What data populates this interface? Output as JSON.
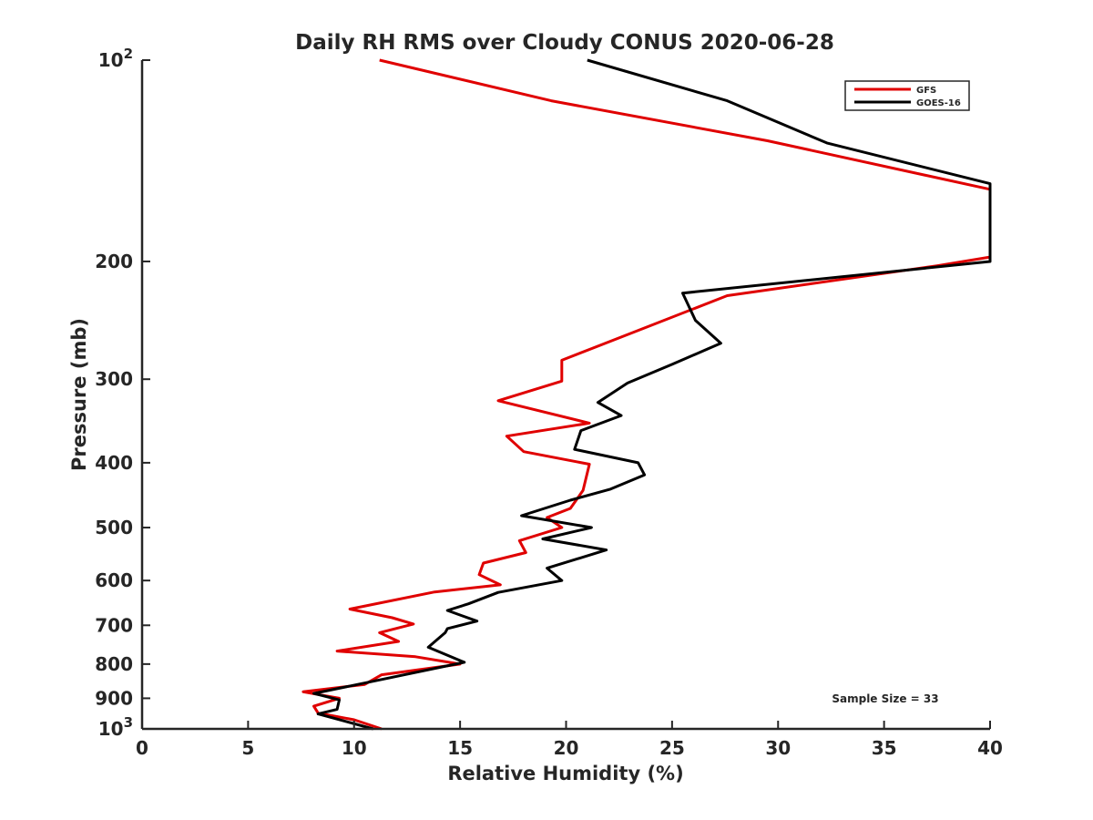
{
  "chart_data": {
    "type": "line",
    "title": "Daily RH RMS over Cloudy CONUS 2020-06-28",
    "xlabel": "Relative Humidity (%)",
    "ylabel": "Pressure (mb)",
    "xlim": [
      0,
      40
    ],
    "ylim": [
      100,
      1000
    ],
    "yscale": "log",
    "y_reversed": true,
    "grid": false,
    "legend_position": "top-right",
    "x_ticks": [
      {
        "value": 0,
        "label": "0"
      },
      {
        "value": 5,
        "label": "5"
      },
      {
        "value": 10,
        "label": "10"
      },
      {
        "value": 15,
        "label": "15"
      },
      {
        "value": 20,
        "label": "20"
      },
      {
        "value": 25,
        "label": "25"
      },
      {
        "value": 30,
        "label": "30"
      },
      {
        "value": 35,
        "label": "35"
      },
      {
        "value": 40,
        "label": "40"
      }
    ],
    "y_ticks": [
      {
        "value": 100,
        "base": "10",
        "exp": "2"
      },
      {
        "value": 200,
        "label": "200"
      },
      {
        "value": 300,
        "label": "300"
      },
      {
        "value": 400,
        "label": "400"
      },
      {
        "value": 500,
        "label": "500"
      },
      {
        "value": 600,
        "label": "600"
      },
      {
        "value": 700,
        "label": "700"
      },
      {
        "value": 800,
        "label": "800"
      },
      {
        "value": 900,
        "label": "900"
      },
      {
        "value": 1000,
        "base": "10",
        "exp": "3"
      }
    ],
    "annotation": "Sample Size = 33",
    "series": [
      {
        "name": "GFS",
        "color": "#e00000",
        "points": [
          {
            "x": 11.2,
            "y": 100
          },
          {
            "x": 19.3,
            "y": 115
          },
          {
            "x": 29.5,
            "y": 132
          },
          {
            "x": 40.0,
            "y": 156
          },
          {
            "x": 40.0,
            "y": 197
          },
          {
            "x": 37.5,
            "y": 203
          },
          {
            "x": 27.6,
            "y": 225
          },
          {
            "x": 23.9,
            "y": 250
          },
          {
            "x": 19.8,
            "y": 281
          },
          {
            "x": 19.8,
            "y": 302
          },
          {
            "x": 16.8,
            "y": 323
          },
          {
            "x": 21.1,
            "y": 349
          },
          {
            "x": 17.2,
            "y": 365
          },
          {
            "x": 18.0,
            "y": 385
          },
          {
            "x": 21.1,
            "y": 402
          },
          {
            "x": 20.8,
            "y": 440
          },
          {
            "x": 20.2,
            "y": 468
          },
          {
            "x": 19.1,
            "y": 483
          },
          {
            "x": 19.8,
            "y": 500
          },
          {
            "x": 17.8,
            "y": 523
          },
          {
            "x": 18.1,
            "y": 545
          },
          {
            "x": 16.1,
            "y": 565
          },
          {
            "x": 15.9,
            "y": 588
          },
          {
            "x": 16.9,
            "y": 609
          },
          {
            "x": 13.8,
            "y": 624
          },
          {
            "x": 9.8,
            "y": 662
          },
          {
            "x": 11.8,
            "y": 682
          },
          {
            "x": 12.8,
            "y": 697
          },
          {
            "x": 11.2,
            "y": 718
          },
          {
            "x": 12.1,
            "y": 740
          },
          {
            "x": 9.2,
            "y": 765
          },
          {
            "x": 12.9,
            "y": 780
          },
          {
            "x": 15.0,
            "y": 800
          },
          {
            "x": 11.3,
            "y": 830
          },
          {
            "x": 10.5,
            "y": 858
          },
          {
            "x": 7.6,
            "y": 880
          },
          {
            "x": 9.3,
            "y": 900
          },
          {
            "x": 8.1,
            "y": 925
          },
          {
            "x": 8.3,
            "y": 947
          },
          {
            "x": 10.0,
            "y": 969
          },
          {
            "x": 11.3,
            "y": 1000
          }
        ]
      },
      {
        "name": "GOES-16",
        "color": "#000000",
        "points": [
          {
            "x": 21.0,
            "y": 100
          },
          {
            "x": 27.6,
            "y": 115
          },
          {
            "x": 32.3,
            "y": 133
          },
          {
            "x": 40.0,
            "y": 153
          },
          {
            "x": 40.0,
            "y": 200
          },
          {
            "x": 25.5,
            "y": 223
          },
          {
            "x": 26.1,
            "y": 245
          },
          {
            "x": 27.3,
            "y": 265
          },
          {
            "x": 25.0,
            "y": 285
          },
          {
            "x": 22.9,
            "y": 304
          },
          {
            "x": 21.5,
            "y": 325
          },
          {
            "x": 22.6,
            "y": 340
          },
          {
            "x": 20.7,
            "y": 358
          },
          {
            "x": 20.4,
            "y": 382
          },
          {
            "x": 23.4,
            "y": 400
          },
          {
            "x": 23.7,
            "y": 417
          },
          {
            "x": 22.1,
            "y": 438
          },
          {
            "x": 20.2,
            "y": 455
          },
          {
            "x": 17.9,
            "y": 480
          },
          {
            "x": 21.2,
            "y": 500
          },
          {
            "x": 18.9,
            "y": 520
          },
          {
            "x": 21.9,
            "y": 540
          },
          {
            "x": 19.1,
            "y": 575
          },
          {
            "x": 19.8,
            "y": 600
          },
          {
            "x": 16.8,
            "y": 625
          },
          {
            "x": 15.4,
            "y": 650
          },
          {
            "x": 14.4,
            "y": 665
          },
          {
            "x": 15.8,
            "y": 690
          },
          {
            "x": 14.4,
            "y": 708
          },
          {
            "x": 14.3,
            "y": 718
          },
          {
            "x": 13.5,
            "y": 755
          },
          {
            "x": 15.2,
            "y": 795
          },
          {
            "x": 10.8,
            "y": 850
          },
          {
            "x": 8.1,
            "y": 885
          },
          {
            "x": 9.3,
            "y": 905
          },
          {
            "x": 9.2,
            "y": 935
          },
          {
            "x": 8.3,
            "y": 950
          },
          {
            "x": 10.9,
            "y": 1000
          }
        ]
      }
    ]
  }
}
